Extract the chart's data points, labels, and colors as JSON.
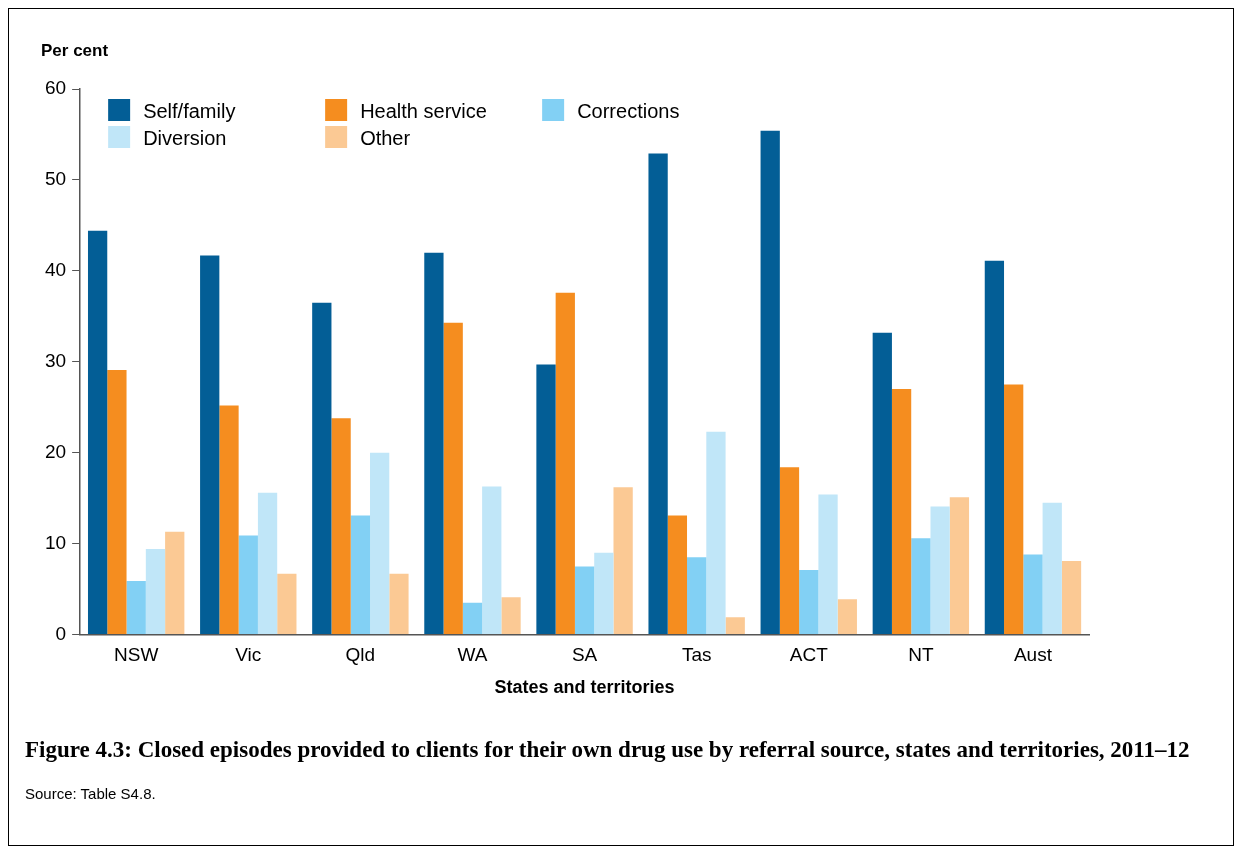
{
  "chart_data": {
    "type": "bar",
    "title": "Figure 4.3: Closed episodes provided to clients for their own drug use by referral source, states and territories, 2011–12",
    "ylabel": "Per cent",
    "xlabel": "States and territories",
    "annotations": [
      "Source: Table S4.8."
    ],
    "categories": [
      "NSW",
      "Vic",
      "Qld",
      "WA",
      "SA",
      "Tas",
      "ACT",
      "NT",
      "Aust"
    ],
    "series": [
      {
        "name": "Self/family",
        "color": "#035e96",
        "values": [
          44.4,
          41.7,
          36.5,
          42.0,
          29.7,
          52.9,
          55.4,
          33.2,
          41.1
        ]
      },
      {
        "name": "Health service",
        "color": "#f58d1f",
        "values": [
          29.1,
          25.2,
          23.8,
          34.3,
          37.6,
          13.1,
          18.4,
          27.0,
          27.5
        ]
      },
      {
        "name": "Corrections",
        "color": "#82d0f4",
        "values": [
          5.9,
          10.9,
          13.1,
          3.5,
          7.5,
          8.5,
          7.1,
          10.6,
          8.8
        ]
      },
      {
        "name": "Diversion",
        "color": "#c0e6f8",
        "values": [
          9.4,
          15.6,
          20.0,
          16.3,
          9.0,
          22.3,
          15.4,
          14.1,
          14.5
        ]
      },
      {
        "name": "Other",
        "color": "#fbc994",
        "values": [
          11.3,
          6.7,
          6.7,
          4.1,
          16.2,
          1.9,
          3.9,
          15.1,
          8.1
        ]
      }
    ],
    "ylim": [
      0,
      60
    ],
    "yticks": [
      0,
      10,
      20,
      30,
      40,
      50,
      60
    ],
    "grid": false,
    "legend": "top left"
  }
}
